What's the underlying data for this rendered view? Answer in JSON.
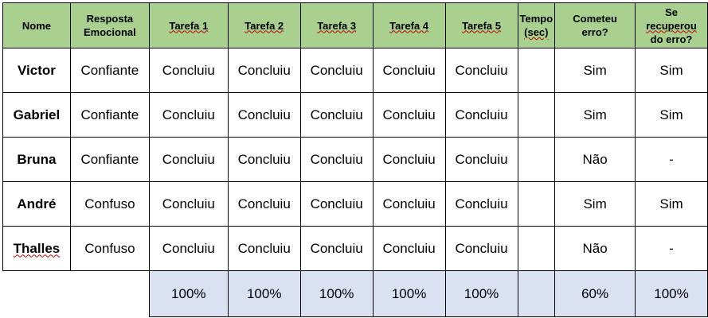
{
  "headers": {
    "nome": "Nome",
    "resposta_line1": "Resposta",
    "resposta_line2": "Emocional",
    "tarefa1": "Tarefa 1",
    "tarefa2": "Tarefa 2",
    "tarefa3": "Tarefa 3",
    "tarefa4": "Tarefa 4",
    "tarefa5": "Tarefa 5",
    "tempo_line1": "Tempo",
    "tempo_line2": "(sec)",
    "cometeu_line1": "Cometeu",
    "cometeu_line2": "erro?",
    "recuperou_line1": "Se",
    "recuperou_line2": "recuperou",
    "recuperou_line3": "do erro?"
  },
  "rows": [
    {
      "nome": "Victor",
      "resposta": "Confiante",
      "t1": "Concluiu",
      "t2": "Concluiu",
      "t3": "Concluiu",
      "t4": "Concluiu",
      "t5": "Concluiu",
      "tempo": "",
      "cometeu": "Sim",
      "recuperou": "Sim"
    },
    {
      "nome": "Gabriel",
      "resposta": "Confiante",
      "t1": "Concluiu",
      "t2": "Concluiu",
      "t3": "Concluiu",
      "t4": "Concluiu",
      "t5": "Concluiu",
      "tempo": "",
      "cometeu": "Sim",
      "recuperou": "Sim"
    },
    {
      "nome": "Bruna",
      "resposta": "Confiante",
      "t1": "Concluiu",
      "t2": "Concluiu",
      "t3": "Concluiu",
      "t4": "Concluiu",
      "t5": "Concluiu",
      "tempo": "",
      "cometeu": "Não",
      "recuperou": "-"
    },
    {
      "nome": "André",
      "resposta": "Confuso",
      "t1": "Concluiu",
      "t2": "Concluiu",
      "t3": "Concluiu",
      "t4": "Concluiu",
      "t5": "Concluiu",
      "tempo": "",
      "cometeu": "Sim",
      "recuperou": "Sim"
    },
    {
      "nome": "Thalles",
      "resposta": "Confuso",
      "t1": "Concluiu",
      "t2": "Concluiu",
      "t3": "Concluiu",
      "t4": "Concluiu",
      "t5": "Concluiu",
      "tempo": "",
      "cometeu": "Não",
      "recuperou": "-"
    }
  ],
  "totals": {
    "t1": "100%",
    "t2": "100%",
    "t3": "100%",
    "t4": "100%",
    "t5": "100%",
    "tempo": "",
    "cometeu": "60%",
    "recuperou": "100%"
  },
  "colors": {
    "header_bg": "#a9d08e",
    "totals_bg": "#d9e1f2",
    "spellcheck_underline": "#c00000"
  }
}
